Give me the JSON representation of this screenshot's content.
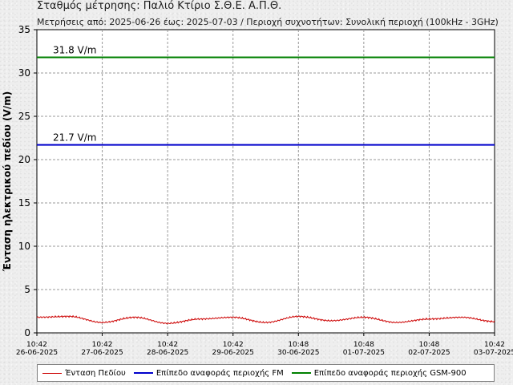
{
  "header": {
    "title": "Σταθμός μέτρησης: Παλιό Κτίριο Σ.Θ.Ε. Α.Π.Θ.",
    "subtitle": "Μετρήσεις από: 2025-06-26 έως: 2025-07-03 / Περιοχή συχνοτήτων: Συνολική περιοχή (100kHz - 3GHz)"
  },
  "colors": {
    "field": "#cc0000",
    "fm": "#0000cc",
    "gsm": "#008000",
    "grid": "#999999"
  },
  "chart_data": {
    "type": "line",
    "title": "",
    "xlabel": "",
    "ylabel": "Ένταση ηλεκτρικού πεδίου (V/m)",
    "ylim": [
      0,
      35
    ],
    "yticks": [
      "0",
      "5",
      "10",
      "15",
      "20",
      "25",
      "30",
      "35"
    ],
    "xticks": [
      {
        "time": "10:42",
        "date": "26-06-2025"
      },
      {
        "time": "10:42",
        "date": "27-06-2025"
      },
      {
        "time": "10:42",
        "date": "28-06-2025"
      },
      {
        "time": "10:42",
        "date": "29-06-2025"
      },
      {
        "time": "10:48",
        "date": "30-06-2025"
      },
      {
        "time": "10:48",
        "date": "01-07-2025"
      },
      {
        "time": "10:48",
        "date": "02-07-2025"
      },
      {
        "time": "10:42",
        "date": "03-07-2025"
      }
    ],
    "grid": true,
    "series": [
      {
        "name": "Ένταση Πεδίου",
        "x": [
          "2025-06-26",
          "2025-06-26 12:00",
          "2025-06-27",
          "2025-06-27 12:00",
          "2025-06-28",
          "2025-06-28 12:00",
          "2025-06-29",
          "2025-06-29 12:00",
          "2025-06-30",
          "2025-06-30 12:00",
          "2025-07-01",
          "2025-07-01 12:00",
          "2025-07-02",
          "2025-07-02 12:00",
          "2025-07-03"
        ],
        "values": [
          1.8,
          1.9,
          1.2,
          1.8,
          1.1,
          1.6,
          1.8,
          1.2,
          1.9,
          1.4,
          1.8,
          1.2,
          1.6,
          1.8,
          1.3
        ]
      },
      {
        "name": "Επίπεδο αναφοράς περιοχής FM",
        "value": 21.7
      },
      {
        "name": "Επίπεδο αναφοράς περιοχής GSM-900",
        "value": 31.8
      }
    ],
    "annotations": [
      {
        "text": "31.8 V/m",
        "value": 31.8
      },
      {
        "text": "21.7 V/m",
        "value": 21.7
      }
    ],
    "legend": {
      "placement": "bottom",
      "items": [
        "Ένταση Πεδίου",
        "Επίπεδο αναφοράς περιοχής FM",
        "Επίπεδο αναφοράς περιοχής GSM-900"
      ]
    }
  }
}
